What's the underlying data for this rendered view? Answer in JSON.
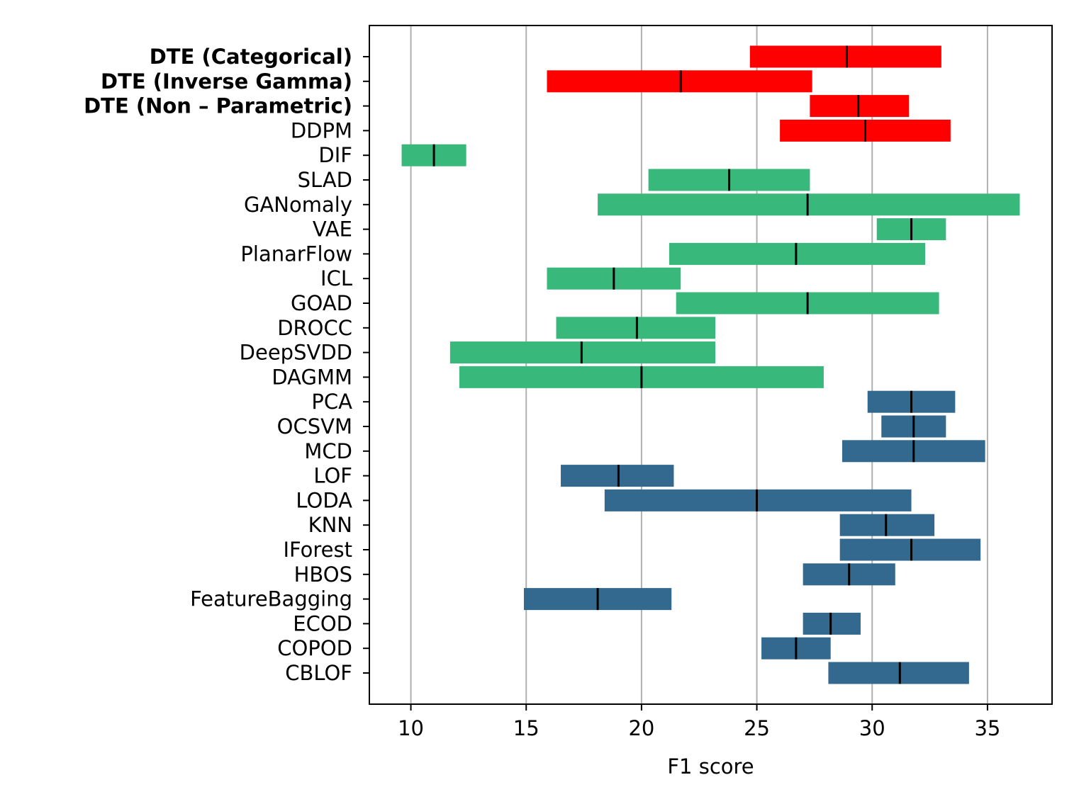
{
  "chart_data": {
    "type": "bar",
    "orientation": "horizontal",
    "title": "",
    "xlabel": "F1 score",
    "ylabel": "",
    "xlim": [
      8.2,
      37.8
    ],
    "xticks": [
      10,
      15,
      20,
      25,
      30,
      35
    ],
    "grid": "vertical",
    "colors": {
      "DTE / DDPM": "#ff0000",
      "Deep methods": "#38b97b",
      "Classical methods": "#33698e",
      "Median marker": "#000000",
      "Grid": "#b0b0b0"
    },
    "rows": [
      {
        "label": "DTE (Categorical)",
        "bold": true,
        "low": 24.7,
        "median": 28.9,
        "high": 33.0,
        "color": "#ff0000"
      },
      {
        "label": "DTE (Inverse Gamma)",
        "bold": true,
        "low": 15.9,
        "median": 21.7,
        "high": 27.4,
        "color": "#ff0000"
      },
      {
        "label": "DTE (Non – Parametric)",
        "bold": true,
        "low": 27.3,
        "median": 29.4,
        "high": 31.6,
        "color": "#ff0000"
      },
      {
        "label": "DDPM",
        "bold": false,
        "low": 26.0,
        "median": 29.7,
        "high": 33.4,
        "color": "#ff0000"
      },
      {
        "label": "DIF",
        "bold": false,
        "low": 9.6,
        "median": 11.0,
        "high": 12.4,
        "color": "#38b97b"
      },
      {
        "label": "SLAD",
        "bold": false,
        "low": 20.3,
        "median": 23.8,
        "high": 27.3,
        "color": "#38b97b"
      },
      {
        "label": "GANomaly",
        "bold": false,
        "low": 18.1,
        "median": 27.2,
        "high": 36.4,
        "color": "#38b97b"
      },
      {
        "label": "VAE",
        "bold": false,
        "low": 30.2,
        "median": 31.7,
        "high": 33.2,
        "color": "#38b97b"
      },
      {
        "label": "PlanarFlow",
        "bold": false,
        "low": 21.2,
        "median": 26.7,
        "high": 32.3,
        "color": "#38b97b"
      },
      {
        "label": "ICL",
        "bold": false,
        "low": 15.9,
        "median": 18.8,
        "high": 21.7,
        "color": "#38b97b"
      },
      {
        "label": "GOAD",
        "bold": false,
        "low": 21.5,
        "median": 27.2,
        "high": 32.9,
        "color": "#38b97b"
      },
      {
        "label": "DROCC",
        "bold": false,
        "low": 16.3,
        "median": 19.8,
        "high": 23.2,
        "color": "#38b97b"
      },
      {
        "label": "DeepSVDD",
        "bold": false,
        "low": 11.7,
        "median": 17.4,
        "high": 23.2,
        "color": "#38b97b"
      },
      {
        "label": "DAGMM",
        "bold": false,
        "low": 12.1,
        "median": 20.0,
        "high": 27.9,
        "color": "#38b97b"
      },
      {
        "label": "PCA",
        "bold": false,
        "low": 29.8,
        "median": 31.7,
        "high": 33.6,
        "color": "#33698e"
      },
      {
        "label": "OCSVM",
        "bold": false,
        "low": 30.4,
        "median": 31.8,
        "high": 33.2,
        "color": "#33698e"
      },
      {
        "label": "MCD",
        "bold": false,
        "low": 28.7,
        "median": 31.8,
        "high": 34.9,
        "color": "#33698e"
      },
      {
        "label": "LOF",
        "bold": false,
        "low": 16.5,
        "median": 19.0,
        "high": 21.4,
        "color": "#33698e"
      },
      {
        "label": "LODA",
        "bold": false,
        "low": 18.4,
        "median": 25.0,
        "high": 31.7,
        "color": "#33698e"
      },
      {
        "label": "KNN",
        "bold": false,
        "low": 28.6,
        "median": 30.6,
        "high": 32.7,
        "color": "#33698e"
      },
      {
        "label": "IForest",
        "bold": false,
        "low": 28.6,
        "median": 31.7,
        "high": 34.7,
        "color": "#33698e"
      },
      {
        "label": "HBOS",
        "bold": false,
        "low": 27.0,
        "median": 29.0,
        "high": 31.0,
        "color": "#33698e"
      },
      {
        "label": "FeatureBagging",
        "bold": false,
        "low": 14.9,
        "median": 18.1,
        "high": 21.3,
        "color": "#33698e"
      },
      {
        "label": "ECOD",
        "bold": false,
        "low": 27.0,
        "median": 28.2,
        "high": 29.5,
        "color": "#33698e"
      },
      {
        "label": "COPOD",
        "bold": false,
        "low": 25.2,
        "median": 26.7,
        "high": 28.2,
        "color": "#33698e"
      },
      {
        "label": "CBLOF",
        "bold": false,
        "low": 28.1,
        "median": 31.2,
        "high": 34.2,
        "color": "#33698e"
      }
    ]
  }
}
